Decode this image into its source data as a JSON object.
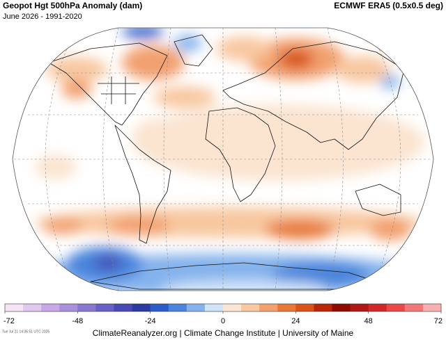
{
  "header": {
    "title": "Geopot Hgt 500hPa Anomaly (dam)",
    "subtitle": "June 2026 - 1991-2020",
    "source": "ECMWF ERA5 (0.5x0.5 deg)"
  },
  "colorbar": {
    "range": [
      -72,
      72
    ],
    "ticks": [
      -72,
      -48,
      -24,
      0,
      24,
      48,
      72
    ],
    "colors": [
      "#f4e4f4",
      "#e0c8ee",
      "#c8a8e6",
      "#a890dc",
      "#8878d0",
      "#6860c4",
      "#4a48b4",
      "#2a3aa0",
      "#2d5cc8",
      "#4a84dc",
      "#84b2ec",
      "#d0e4f8",
      "#fbe6d6",
      "#f8c8a0",
      "#f2a070",
      "#e87838",
      "#d85418",
      "#b82808",
      "#8c0c04",
      "#b01818",
      "#d02828",
      "#e84848",
      "#f07878",
      "#f8b0b0"
    ]
  },
  "footer": "ClimateReanalyzer.org | Climate Change Institute | University of Maine",
  "timestamp": "Tue Jul 21 14:35:51 UTC 2026"
}
